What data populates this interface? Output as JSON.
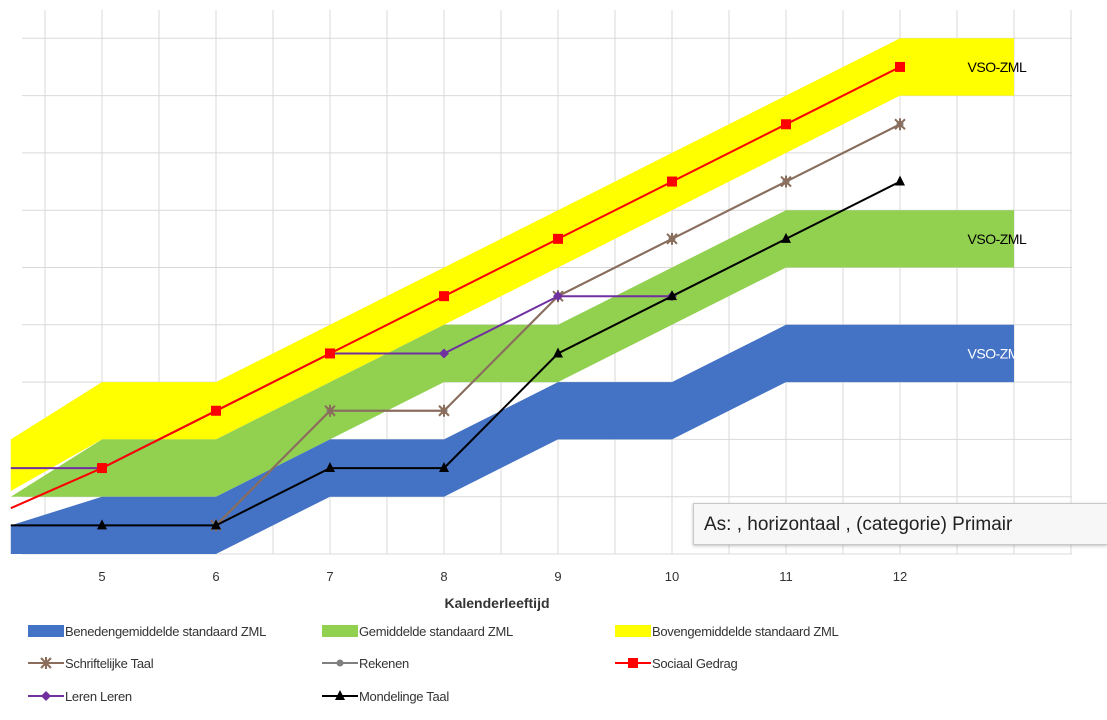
{
  "chart_data": {
    "type": "line",
    "xlabel": "Kalenderleeftijd",
    "categories": [
      "5",
      "6",
      "7",
      "8",
      "9",
      "10",
      "11",
      "12"
    ],
    "bands": [
      {
        "name": "Benedengemiddelde standaard ZML",
        "color": "#4472c4",
        "points": [
          [
            4.2,
            0,
            0.5
          ],
          [
            5,
            0,
            1
          ],
          [
            6,
            0,
            1
          ],
          [
            7,
            1,
            2
          ],
          [
            8,
            1,
            2
          ],
          [
            9,
            2,
            3
          ],
          [
            10,
            2,
            3
          ],
          [
            11,
            3,
            4
          ],
          [
            12,
            3,
            4
          ],
          [
            13,
            3,
            4
          ]
        ],
        "label": "VSO-ZML",
        "label_color": "#ffffff"
      },
      {
        "name": "Gemiddelde standaard ZML",
        "color": "#92d050",
        "points": [
          [
            4.2,
            1,
            1
          ],
          [
            5,
            1,
            2
          ],
          [
            6,
            1,
            2
          ],
          [
            7,
            2,
            3
          ],
          [
            8,
            3,
            4
          ],
          [
            9,
            3,
            4
          ],
          [
            10,
            4,
            5
          ],
          [
            11,
            5,
            6
          ],
          [
            12,
            5,
            6
          ],
          [
            13,
            5,
            6
          ]
        ],
        "label": "VSO-ZML",
        "label_color": "#000000"
      },
      {
        "name": "Bovengemiddelde standaard ZML",
        "color": "#ffff00",
        "points": [
          [
            4.2,
            1.1,
            2
          ],
          [
            5,
            2,
            3
          ],
          [
            6,
            2,
            3
          ],
          [
            7,
            3,
            4
          ],
          [
            8,
            4,
            5
          ],
          [
            9,
            5,
            6
          ],
          [
            10,
            6,
            7
          ],
          [
            11,
            7,
            8
          ],
          [
            12,
            8,
            9
          ],
          [
            13,
            8,
            9
          ]
        ],
        "label": "VSO-ZML",
        "label_color": "#000000"
      }
    ],
    "series": [
      {
        "name": "Schriftelijke Taal",
        "color": "#8b6d5c",
        "marker": "star",
        "x": [
          6,
          7,
          8,
          9,
          10,
          11,
          12
        ],
        "values": [
          0.5,
          2.5,
          2.5,
          4.5,
          5.5,
          6.5,
          7.5
        ]
      },
      {
        "name": "Rekenen",
        "color": "#808080",
        "marker": "circle",
        "x": [
          6,
          7,
          8,
          9,
          10,
          11,
          12
        ],
        "values": [
          0.5,
          2.5,
          2.5,
          4.5,
          5.5,
          6.5,
          7.5
        ]
      },
      {
        "name": "Sociaal Gedrag",
        "color": "#ff0000",
        "marker": "square",
        "x": [
          4.2,
          5,
          6,
          7,
          8,
          9,
          10,
          11,
          12
        ],
        "values": [
          0.8,
          1.5,
          2.5,
          3.5,
          4.5,
          5.5,
          6.5,
          7.5,
          8.5
        ]
      },
      {
        "name": "Leren Leren",
        "color": "#7030a0",
        "marker": "diamond",
        "x": [
          4.2,
          5,
          6,
          7,
          8,
          9,
          10
        ],
        "values": [
          1.5,
          1.5,
          2.5,
          3.5,
          3.5,
          4.5,
          4.5
        ]
      },
      {
        "name": "Mondelinge Taal",
        "color": "#000000",
        "marker": "triangle",
        "x": [
          4.2,
          5,
          6,
          7,
          8,
          9,
          10,
          11,
          12
        ],
        "values": [
          0.5,
          0.5,
          0.5,
          1.5,
          1.5,
          3.5,
          4.5,
          5.5,
          6.5
        ]
      }
    ],
    "legend": [
      "Benedengemiddelde standaard ZML",
      "Gemiddelde standaard ZML",
      "Bovengemiddelde standaard ZML",
      "Schriftelijke Taal",
      "Rekenen",
      "Sociaal Gedrag",
      "Leren Leren",
      "Mondelinge Taal"
    ],
    "xlim": [
      4.2,
      13.4
    ],
    "ylim": [
      0,
      9.3
    ],
    "grid": true,
    "legend_position": "bottom"
  },
  "tooltip": {
    "text": "As: , horizontaal , (categorie)  Primair"
  }
}
